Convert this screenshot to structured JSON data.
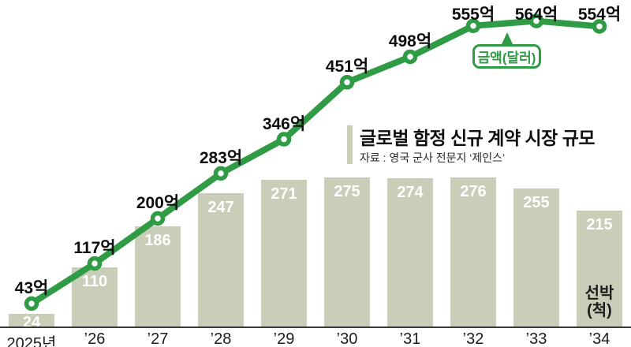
{
  "title": {
    "text": "글로벌 함정 신규 계약 시장 규모",
    "source": "자료 : 영국 군사 전문지 ‘제인스’"
  },
  "legend": {
    "line_label": "금액(달러)",
    "bar_label_line1": "선박",
    "bar_label_line2": "(척)"
  },
  "colors": {
    "line_green": "#2f9b45",
    "point_fill": "#ffffff",
    "bar_fill": "#c8ceb8",
    "bar_value_text": "#ffffff",
    "point_label_text": "#0d0d0d",
    "axis_line": "#3a3a3a",
    "axis_label_text": "#1d1d1d",
    "title_text": "#0f0f0f",
    "source_text": "#2b2b2b",
    "title_accent": "#c8ceb8",
    "legend_border": "#2f9b45",
    "legend_text": "#2f9b45",
    "ship_label_text": "#1d1d1d",
    "background": "#ffffff"
  },
  "chart_data": {
    "type": "combo",
    "title": "글로벌 함정 신규 계약 시장 규모",
    "source": "자료 : 영국 군사 전문지 ‘제인스’",
    "categories": [
      "2025년",
      "’26",
      "’27",
      "’28",
      "’29",
      "’30",
      "’31",
      "’32",
      "’33",
      "’34"
    ],
    "series": [
      {
        "name": "금액(달러)",
        "type": "line",
        "unit_suffix": "억",
        "values": [
          43,
          117,
          200,
          283,
          346,
          451,
          498,
          555,
          564,
          554
        ]
      },
      {
        "name": "선박(척)",
        "type": "bar",
        "values": [
          24,
          110,
          186,
          247,
          271,
          275,
          274,
          276,
          255,
          215
        ]
      }
    ],
    "grid": false,
    "legend_position": "inline-callouts",
    "value_axis_hidden": true
  }
}
